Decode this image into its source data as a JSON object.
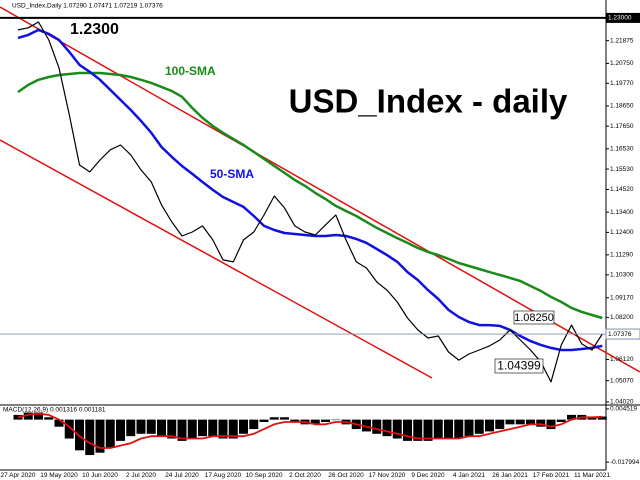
{
  "chart_data": [
    {
      "type": "line",
      "header": "USD_Index,Daily 1.07290 1.07471 1.07219 1.07376",
      "title": "USD_Index - daily",
      "annotations": [
        "1.2300",
        "1.08250",
        "1.04399"
      ],
      "categories": [
        "27 Apr 2020",
        null,
        null,
        null,
        "19 May 2020",
        null,
        null,
        null,
        "10 Jun 2020",
        null,
        null,
        null,
        "2 Jul 2020",
        null,
        null,
        null,
        "24 Jul 2020",
        null,
        null,
        null,
        "17 Aug 2020",
        null,
        null,
        null,
        "10 Sep 2020",
        null,
        null,
        null,
        "2 Oct 2020",
        null,
        null,
        null,
        "26 Oct 2020",
        null,
        null,
        null,
        "17 Nov 2020",
        null,
        null,
        null,
        "9 Dec 2020",
        null,
        null,
        null,
        "4 Jan 2021",
        null,
        null,
        null,
        "26 Jan 2021",
        null,
        null,
        null,
        "17 Feb 2021",
        null,
        null,
        null,
        "11 Mar 2021",
        null
      ],
      "series": [
        {
          "color": "#000000",
          "values": [
            1.2241,
            1.2251,
            1.228,
            1.2191,
            1.2053,
            1.1821,
            1.1573,
            1.1539,
            1.1598,
            1.1648,
            1.1672,
            1.1623,
            1.1549,
            1.1489,
            1.1376,
            1.1292,
            1.1222,
            1.1242,
            1.1272,
            1.1203,
            1.1104,
            1.1094,
            1.1203,
            1.1242,
            1.1326,
            1.142,
            1.1361,
            1.1272,
            1.1242,
            1.1227,
            1.1277,
            1.1326,
            1.1203,
            1.1094,
            1.1064,
            1.0995,
            1.0955,
            1.0896,
            1.0817,
            1.0758,
            1.0718,
            1.0728,
            1.0649,
            1.0609,
            1.0639,
            1.0659,
            1.0679,
            1.0708,
            1.0758,
            1.0708,
            1.0659,
            1.06,
            1.0501,
            1.0684,
            1.0782,
            1.0689,
            1.0659,
            1.0738
          ]
        },
        {
          "name": "50-SMA",
          "color": "#1010e0",
          "values": [
            1.2201,
            1.2216,
            1.2241,
            1.2221,
            1.2191,
            1.2132,
            1.2068,
            1.2033,
            1.1994,
            1.1944,
            1.1895,
            1.1845,
            1.1791,
            1.1732,
            1.1662,
            1.1613,
            1.1568,
            1.1529,
            1.1489,
            1.145,
            1.1415,
            1.139,
            1.1366,
            1.1321,
            1.1272,
            1.1252,
            1.1237,
            1.1232,
            1.1227,
            1.1222,
            1.1222,
            1.1227,
            1.1222,
            1.1208,
            1.1188,
            1.1158,
            1.1128,
            1.1094,
            1.1044,
            1.1005,
            1.0955,
            1.0911,
            1.0857,
            1.0822,
            1.0797,
            1.0782,
            1.0782,
            1.0778,
            1.0758,
            1.0728,
            1.0703,
            1.0684,
            1.0669,
            1.0659,
            1.0659,
            1.0664,
            1.0669,
            1.0679
          ]
        },
        {
          "name": "100-SMA",
          "color": "#1a8a1a",
          "values": [
            1.1934,
            1.1969,
            1.1994,
            1.2008,
            1.2018,
            1.2023,
            1.2028,
            1.2028,
            1.2028,
            1.2023,
            1.2018,
            1.2008,
            1.1994,
            1.1979,
            1.1959,
            1.1939,
            1.191,
            1.1855,
            1.1806,
            1.1766,
            1.1732,
            1.1702,
            1.1672,
            1.1638,
            1.1603,
            1.1568,
            1.1534,
            1.1499,
            1.147,
            1.1435,
            1.1405,
            1.1371,
            1.1346,
            1.1321,
            1.1292,
            1.1262,
            1.1237,
            1.1212,
            1.1188,
            1.1163,
            1.1143,
            1.1128,
            1.1109,
            1.1089,
            1.1074,
            1.1059,
            1.1044,
            1.103,
            1.1015,
            1.1,
            1.0975,
            1.0951,
            1.0921,
            1.0896,
            1.0867,
            1.0847,
            1.0832,
            1.0817
          ]
        }
      ],
      "ylim": [
        1.0387,
        1.2349
      ],
      "yticks": [
        1.21875,
        {
          "value": 1.2075,
          "label": "1.20750"
        },
        {
          "value": 1.1977,
          "label": "1.19770"
        },
        {
          "value": 1.1865,
          "label": "1.18650"
        },
        {
          "value": 1.1765,
          "label": "1.17650"
        },
        {
          "value": 1.1653,
          "label": "1.16530"
        },
        {
          "value": 1.1553,
          "label": "1.15530"
        },
        {
          "value": 1.1452,
          "label": "1.14520"
        },
        {
          "value": 1.134,
          "label": "1.13400"
        },
        {
          "value": 1.124,
          "label": "1.12400"
        },
        {
          "value": 1.1129,
          "label": "1.11290"
        },
        {
          "value": 1.103,
          "label": "1.10300"
        },
        {
          "value": 1.0917,
          "label": "1.09170"
        },
        {
          "value": 1.082,
          "label": "1.08200"
        },
        {
          "value": 1.0612,
          "label": "1.06120"
        },
        {
          "value": 1.0507,
          "label": "1.05070"
        },
        {
          "value": 1.0402,
          "label": "1.04020"
        }
      ],
      "resistance": {
        "value": 1.23,
        "label": "1.23000"
      },
      "current_price": 1.07376,
      "current_color": "#8090b0"
    },
    {
      "type": "macd",
      "title": "MACD(12,26,9) 0.001316 0.001181",
      "series": [
        {
          "color": "#000000",
          "values": [
            0.002,
            0.003,
            0.003,
            0.001,
            -0.003,
            -0.008,
            -0.013,
            -0.015,
            -0.014,
            -0.012,
            -0.009,
            -0.007,
            -0.006,
            -0.006,
            -0.007,
            -0.008,
            -0.009,
            -0.008,
            -0.007,
            -0.007,
            -0.008,
            -0.008,
            -0.006,
            -0.004,
            -0.001,
            0.001,
            0.001,
            -0.001,
            -0.002,
            -0.002,
            -0.001,
            0,
            -0.002,
            -0.004,
            -0.005,
            -0.006,
            -0.007,
            -0.008,
            -0.009,
            -0.009,
            -0.009,
            -0.008,
            -0.008,
            -0.008,
            -0.007,
            -0.006,
            -0.005,
            -0.004,
            -0.002,
            -0.002,
            -0.002,
            -0.003,
            -0.004,
            -0.001,
            0.002,
            0.002,
            0.001,
            0.0013
          ]
        },
        {
          "color": "#e01010",
          "values": [
            0.001,
            0.002,
            0.0025,
            0.002,
            0,
            -0.003,
            -0.007,
            -0.01,
            -0.012,
            -0.012,
            -0.011,
            -0.01,
            -0.008,
            -0.007,
            -0.007,
            -0.007,
            -0.008,
            -0.008,
            -0.008,
            -0.007,
            -0.007,
            -0.007,
            -0.007,
            -0.006,
            -0.004,
            -0.002,
            -0.001,
            -0.001,
            -0.001,
            -0.002,
            -0.002,
            -0.001,
            -0.001,
            -0.002,
            -0.003,
            -0.004,
            -0.005,
            -0.006,
            -0.007,
            -0.008,
            -0.008,
            -0.008,
            -0.008,
            -0.008,
            -0.007,
            -0.007,
            -0.006,
            -0.005,
            -0.004,
            -0.003,
            -0.002,
            -0.002,
            -0.003,
            -0.002,
            0,
            0.001,
            0.001,
            0.0012
          ]
        }
      ],
      "ylim": [
        -0.02133,
        0.00619
      ],
      "yticks": [
        0.004519,
        -0.017994
      ]
    }
  ]
}
